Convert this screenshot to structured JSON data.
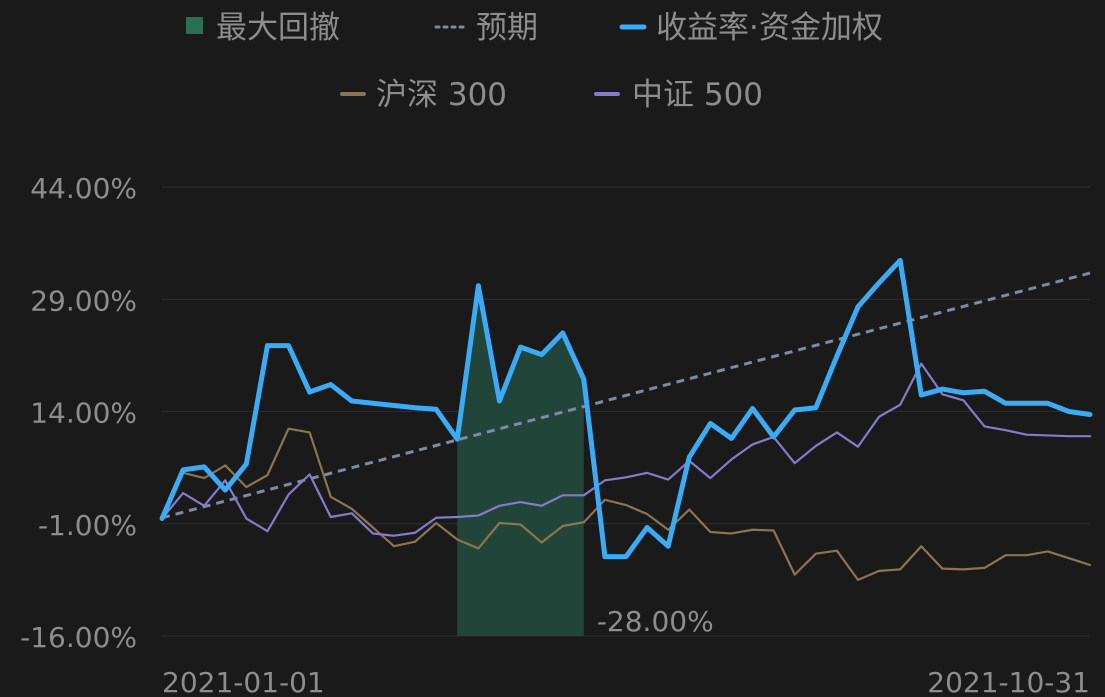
{
  "chart_data": {
    "type": "line",
    "x_start": "2021-01-01",
    "x_end": "2021-10-31",
    "x_tick_labels": [
      "2021-01-01",
      "2021-10-31"
    ],
    "y_tick_labels": [
      "44.00%",
      "29.00%",
      "14.00%",
      "-1.00%",
      "-16.00%"
    ],
    "y_ticks": [
      44,
      29,
      14,
      -1,
      -16
    ],
    "ylim": [
      -16,
      44
    ],
    "grid": true,
    "legend_position": "top",
    "drawdown": {
      "legend": "最大回撤",
      "value_label": "-28.00%",
      "start_index": 14,
      "end_index": 20,
      "color": "#22493b"
    },
    "expected": {
      "name": "预期",
      "start": -0.2,
      "end": 32.5,
      "color": "#7d8aa3"
    },
    "series": [
      {
        "name": "收益率·资金加权",
        "color": "#3aabf4",
        "values": [
          -0.3,
          6.2,
          6.6,
          3.5,
          7.0,
          22.8,
          22.8,
          16.6,
          17.6,
          15.4,
          15.1,
          14.8,
          14.5,
          14.3,
          10.3,
          30.8,
          15.4,
          22.6,
          21.6,
          24.5,
          18.3,
          -5.4,
          -5.4,
          -1.5,
          -4.0,
          7.9,
          12.4,
          10.4,
          14.4,
          10.6,
          14.2,
          14.5,
          21.4,
          28.0,
          31.2,
          34.2,
          16.2,
          17.0,
          16.5,
          16.7,
          15.1,
          15.1,
          15.1,
          14.0,
          13.6
        ]
      },
      {
        "name": "沪深 300",
        "color": "#8a7550",
        "values": [
          -0.3,
          5.8,
          5.1,
          6.8,
          3.9,
          5.5,
          11.7,
          11.2,
          2.6,
          1.0,
          -1.5,
          -4.0,
          -3.4,
          -0.9,
          -3.1,
          -4.3,
          -0.9,
          -1.1,
          -3.5,
          -1.3,
          -0.8,
          2.2,
          1.5,
          0.3,
          -1.8,
          0.9,
          -2.1,
          -2.3,
          -1.8,
          -1.9,
          -7.8,
          -5.0,
          -4.6,
          -8.5,
          -7.3,
          -7.1,
          -4.0,
          -7.0,
          -7.1,
          -6.9,
          -5.2,
          -5.2,
          -4.7,
          -5.6,
          -6.5
        ]
      },
      {
        "name": "中证 500",
        "color": "#857bcc",
        "values": [
          -0.3,
          3.1,
          1.4,
          4.8,
          -0.3,
          -2.0,
          2.9,
          5.6,
          -0.1,
          0.4,
          -2.3,
          -2.6,
          -2.2,
          -0.2,
          -0.1,
          0.1,
          1.4,
          1.9,
          1.4,
          2.8,
          2.8,
          4.8,
          5.2,
          5.8,
          4.9,
          7.4,
          5.1,
          7.6,
          9.6,
          10.6,
          7.1,
          9.4,
          11.2,
          9.3,
          13.3,
          14.9,
          20.4,
          16.3,
          15.5,
          12.0,
          11.5,
          10.9,
          10.8,
          10.7,
          10.7
        ]
      }
    ]
  }
}
